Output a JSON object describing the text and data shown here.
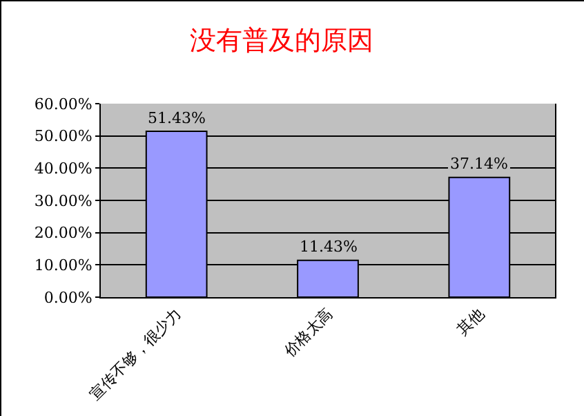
{
  "chart_data": {
    "type": "bar",
    "title": "没有普及的原因",
    "categories": [
      "宣传不够，很少力",
      "价格太高",
      "其他"
    ],
    "values": [
      51.43,
      11.43,
      37.14
    ],
    "value_labels": [
      "51.43%",
      "11.43%",
      "37.14%"
    ],
    "color": "#9999ff",
    "ylim": [
      0,
      60
    ],
    "yticks": [
      {
        "value": 0,
        "label": "0.00%"
      },
      {
        "value": 10,
        "label": "10.00%"
      },
      {
        "value": 20,
        "label": "20.00%"
      },
      {
        "value": 30,
        "label": "30.00%"
      },
      {
        "value": 40,
        "label": "40.00%"
      },
      {
        "value": 50,
        "label": "50.00%"
      },
      {
        "value": 60,
        "label": "60.00%"
      }
    ],
    "grid": "y"
  }
}
